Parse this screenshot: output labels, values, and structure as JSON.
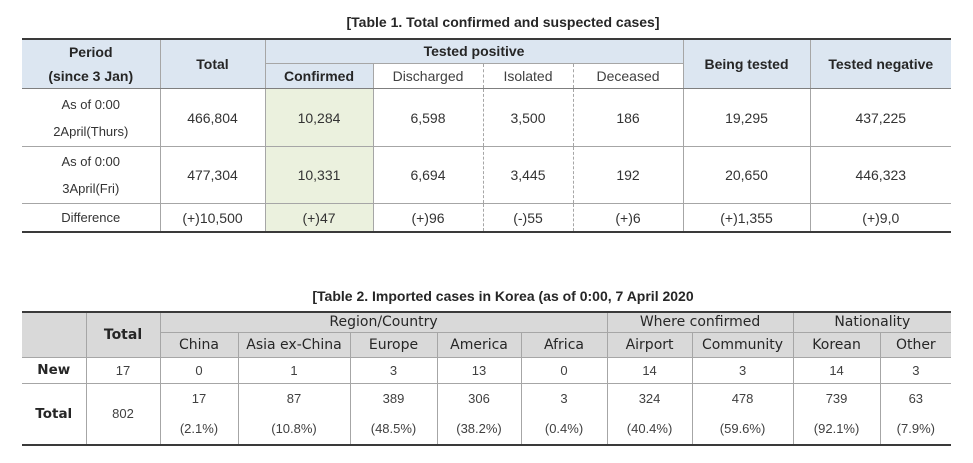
{
  "table1": {
    "title": "[Table 1. Total confirmed and suspected cases]",
    "header": {
      "period": "Period",
      "period_note": "(since 3 Jan)",
      "total": "Total",
      "tested_positive": "Tested positive",
      "confirmed": "Confirmed",
      "discharged": "Discharged",
      "isolated": "Isolated",
      "deceased": "Deceased",
      "being_tested": "Being tested",
      "tested_negative": "Tested negative"
    },
    "rows": [
      {
        "as_of": "As of 0:00",
        "date": "2April(Thurs)",
        "total": "466,804",
        "confirmed": "10,284",
        "discharged": "6,598",
        "isolated": "3,500",
        "deceased": "186",
        "being_tested": "19,295",
        "tested_negative": "437,225"
      },
      {
        "as_of": "As of 0:00",
        "date": "3April(Fri)",
        "total": "477,304",
        "confirmed": "10,331",
        "discharged": "6,694",
        "isolated": "3,445",
        "deceased": "192",
        "being_tested": "20,650",
        "tested_negative": "446,323"
      }
    ],
    "difference": {
      "label": "Difference",
      "total": "(+)10,500",
      "confirmed": "(+)47",
      "discharged": "(+)96",
      "isolated": "(-)55",
      "deceased": "(+)6",
      "being_tested": "(+)1,355",
      "tested_negative": "(+)9,0"
    }
  },
  "table2": {
    "title": "[Table 2. Imported cases in Korea (as of 0:00, 7 April 2020",
    "header": {
      "total": "Total",
      "region_country": "Region/Country",
      "where_confirmed": "Where confirmed",
      "nationality": "Nationality",
      "columns": [
        "China",
        "Asia ex-China",
        "Europe",
        "America",
        "Africa",
        "Airport",
        "Community",
        "Korean",
        "Other"
      ]
    },
    "rows": [
      {
        "label": "New",
        "total": "17",
        "counts": [
          "0",
          "1",
          "3",
          "13",
          "0",
          "14",
          "3",
          "14",
          "3"
        ]
      },
      {
        "label": "Total",
        "total": "802",
        "counts": [
          "17",
          "87",
          "389",
          "306",
          "3",
          "324",
          "478",
          "739",
          "63"
        ],
        "shares": [
          "(2.1%)",
          "(10.8%)",
          "(48.5%)",
          "(38.2%)",
          "(0.4%)",
          "(40.4%)",
          "(59.6%)",
          "(92.1%)",
          "(7.9%)"
        ]
      }
    ]
  },
  "colors": {
    "table1_header_fill": "#dce6f1",
    "confirmed_column_fill": "#ebf1de",
    "table2_header_fill": "#d9d9d9",
    "table_rule": "#3a3a3a",
    "grid_line": "#a6a6a6"
  }
}
